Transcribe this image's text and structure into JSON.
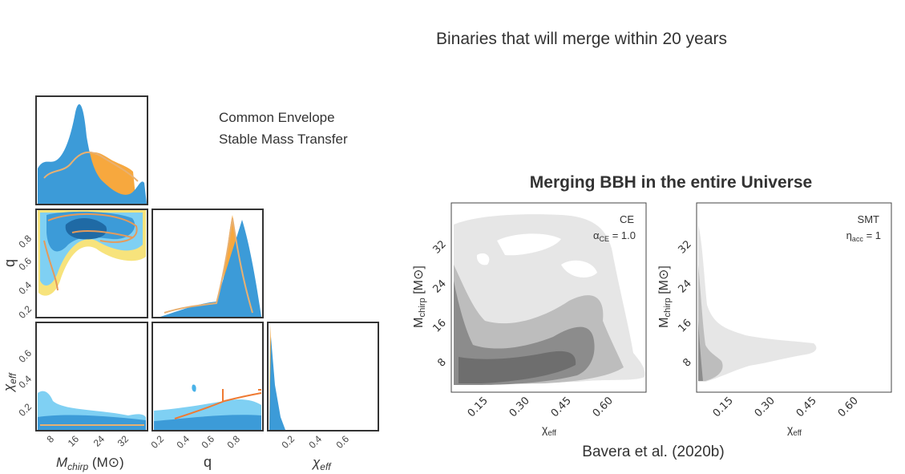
{
  "title": "Binaries that will merge within 20 years",
  "corner_plot": {
    "legend": [
      "Common Envelope",
      "Stable Mass Transfer"
    ],
    "mchirp_ticks": [
      "8",
      "16",
      "24",
      "32"
    ],
    "q_ticks": [
      "0.2",
      "0.4",
      "0.6",
      "0.8"
    ],
    "chi_ticks": [
      "0.2",
      "0.4",
      "0.6"
    ],
    "q_axis_ticks": [
      "0.2",
      "0.4",
      "0.6",
      "0.8"
    ],
    "chi_axis_ticks": [
      "0.2",
      "0.4",
      "0.6"
    ],
    "mchirp_label": {
      "main": "M",
      "sub": "chirp",
      "tail": " (M⊙)"
    },
    "q_label": "q",
    "chi_label": {
      "main": "χ",
      "sub": "eff"
    }
  },
  "universe_plot": {
    "title": "Merging BBH in the entire Universe",
    "panels": [
      {
        "name": "CE",
        "param": {
          "main": "α",
          "sub": "CE",
          "tail": " = 1.0"
        }
      },
      {
        "name": "SMT",
        "param": {
          "main": "η",
          "sub": "acc",
          "tail": " = 1"
        }
      }
    ],
    "y_ticks": [
      "8",
      "16",
      "24",
      "32"
    ],
    "x_ticks": [
      "0.15",
      "0.30",
      "0.45",
      "0.60"
    ],
    "y_label": {
      "main": "M",
      "sub": "chirp",
      "tail": " [M⊙]"
    },
    "x_label": {
      "main": "χ",
      "sub": "eff"
    }
  },
  "citation": "Bavera et al. (2020b)"
}
